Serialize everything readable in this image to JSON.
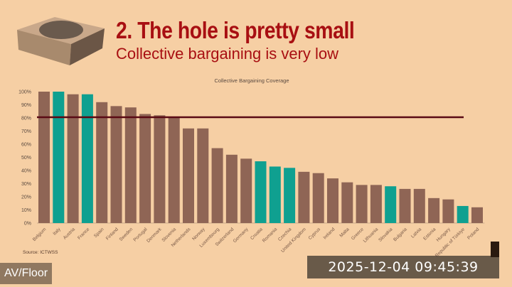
{
  "slide": {
    "title": "2. The hole is pretty small",
    "subtitle": "Collective bargaining is very low",
    "source": "Source: ICTWSS"
  },
  "overlay": {
    "camera_label": "AV/Floor",
    "timestamp": "2025-12-04  09:45:39"
  },
  "colors": {
    "default_bar": "#8f6555",
    "highlight_bar": "#0fa090",
    "reference_line": "#5a0a14",
    "background": "#f6cfa4"
  },
  "chart_data": {
    "type": "bar",
    "title": "Collective Bargaining Coverage",
    "xlabel": "",
    "ylabel": "",
    "ylim": [
      0,
      100
    ],
    "yticks": [
      "0%",
      "10%",
      "20%",
      "30%",
      "40%",
      "50%",
      "60%",
      "70%",
      "80%",
      "90%",
      "100%"
    ],
    "reference_line": 80,
    "categories": [
      "Belgium",
      "Italy",
      "Austria",
      "France",
      "Spain",
      "Finland",
      "Sweden",
      "Portugal",
      "Denmark",
      "Slovenia",
      "Netherlands",
      "Norway",
      "Luxembourg",
      "Switzerland",
      "Germany",
      "Croatia",
      "Romania",
      "Czechia",
      "United Kingdom",
      "Cyprus",
      "Ireland",
      "Malta",
      "Greece",
      "Lithuania",
      "Slovakia",
      "Bulgaria",
      "Latvia",
      "Estonia",
      "Hungary",
      "Republic of Türkiye",
      "Poland"
    ],
    "values": [
      100,
      100,
      98,
      98,
      92,
      89,
      88,
      83,
      82,
      80,
      72,
      72,
      57,
      52,
      49,
      47,
      43,
      42,
      39,
      38,
      34,
      31,
      29,
      29,
      28,
      26,
      26,
      19,
      18,
      13,
      12
    ],
    "highlighted": [
      "Italy",
      "France",
      "Croatia",
      "Romania",
      "Czechia",
      "Slovakia",
      "Republic of Türkiye"
    ]
  }
}
